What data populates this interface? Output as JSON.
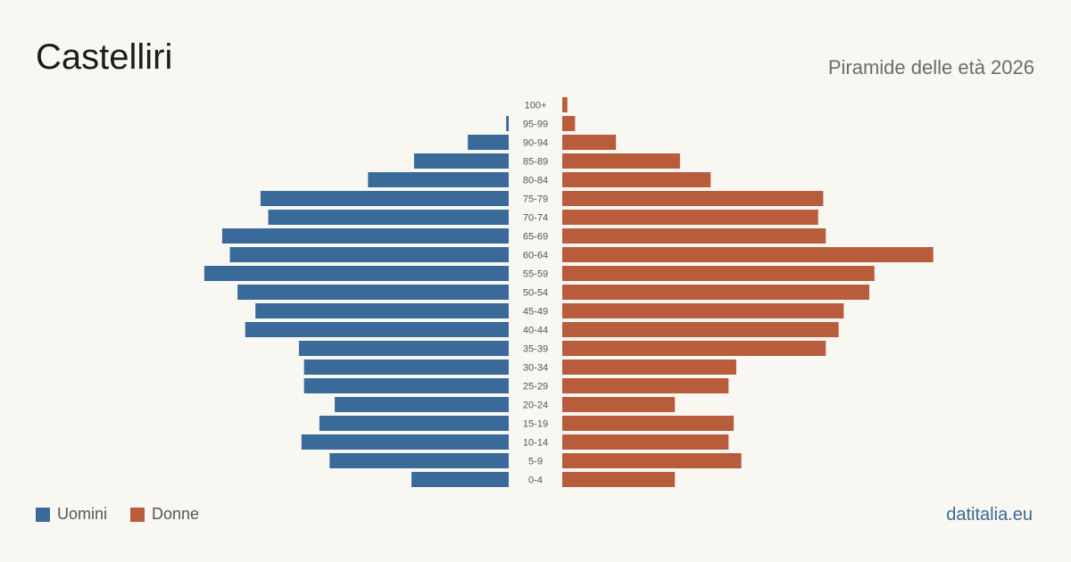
{
  "header": {
    "title": "Castelliri",
    "subtitle": "Piramide delle età 2026"
  },
  "legend": {
    "men_label": "Uomini",
    "women_label": "Donne"
  },
  "source": "datitalia.eu",
  "colors": {
    "men": "#3a6a9a",
    "women": "#b85c3c",
    "background": "#f9f7f2"
  },
  "chart_data": {
    "type": "bar",
    "orientation": "horizontal-pyramid",
    "categories": [
      "100+",
      "95-99",
      "90-94",
      "85-89",
      "80-84",
      "75-79",
      "70-74",
      "65-69",
      "60-64",
      "55-59",
      "50-54",
      "45-49",
      "40-44",
      "35-39",
      "30-34",
      "25-29",
      "20-24",
      "15-19",
      "10-14",
      "5-9",
      "0-4"
    ],
    "series": [
      {
        "name": "Uomini",
        "values": [
          0,
          1,
          16,
          37,
          55,
          97,
          94,
          112,
          109,
          119,
          106,
          99,
          103,
          82,
          80,
          80,
          68,
          74,
          81,
          70,
          38
        ]
      },
      {
        "name": "Donne",
        "values": [
          2,
          5,
          21,
          46,
          58,
          102,
          100,
          103,
          145,
          122,
          120,
          110,
          108,
          103,
          68,
          65,
          44,
          67,
          65,
          70,
          44
        ]
      }
    ],
    "xlim": [
      0,
      150
    ]
  }
}
